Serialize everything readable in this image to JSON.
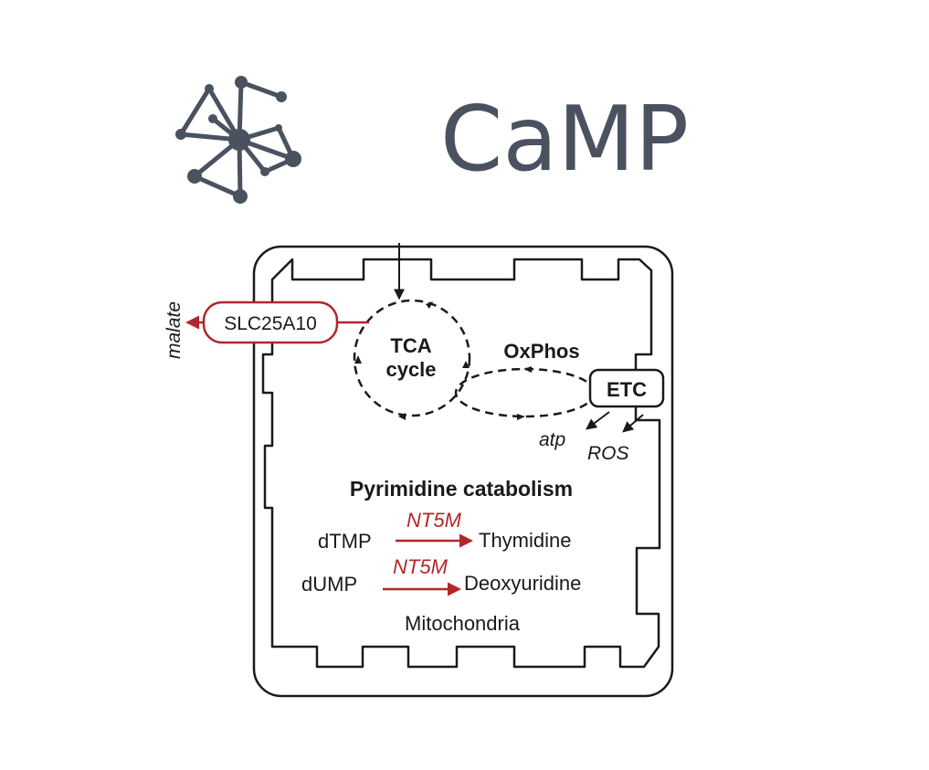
{
  "brand": {
    "logo_icon": "network-node-icon",
    "name": "CaMP",
    "color": "#4a5260"
  },
  "diagram": {
    "transporter": "SLC25A10",
    "export_metabolite": "malate",
    "tca_line1": "TCA",
    "tca_line2": "cycle",
    "oxphos": "OxPhos",
    "etc": "ETC",
    "atp": "atp",
    "ros": "ROS",
    "pathway_title": "Pyrimidine catabolism",
    "reactions": [
      {
        "substrate": "dTMP",
        "enzyme": "NT5M",
        "product": "Thymidine"
      },
      {
        "substrate": "dUMP",
        "enzyme": "NT5M",
        "product": "Deoxyuridine"
      }
    ],
    "organelle": "Mitochondria",
    "colors": {
      "highlight": "#b3262b",
      "line": "#1a1a1a"
    }
  }
}
